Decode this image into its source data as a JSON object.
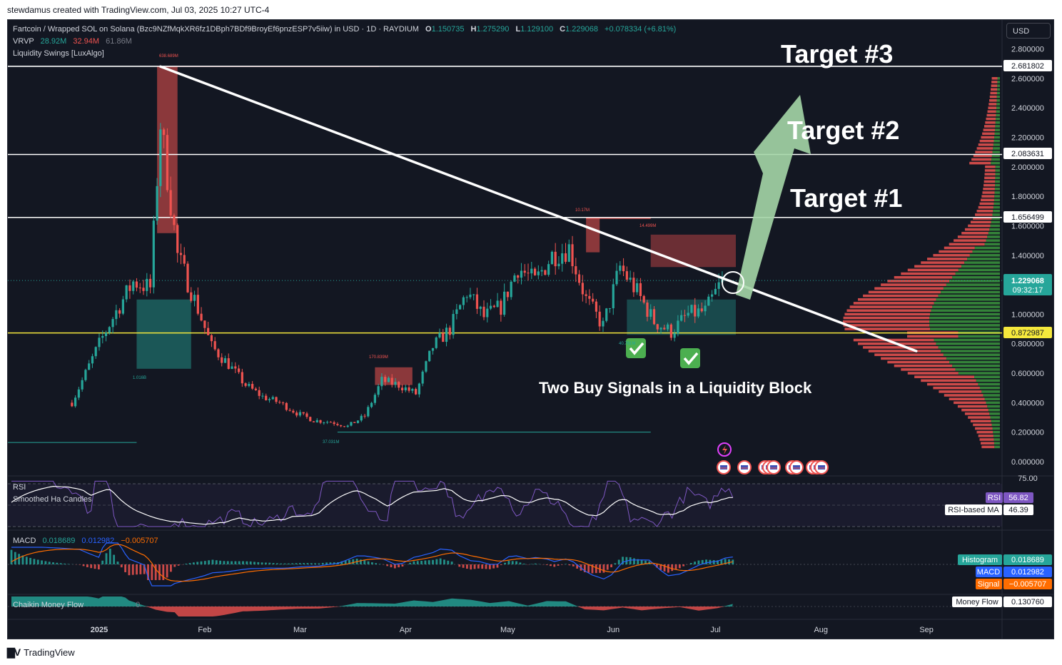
{
  "header": {
    "credit": "stewdamus created with TradingView.com, Jul 03, 2025 10:27 UTC-4"
  },
  "footer": {
    "brand": "TradingView"
  },
  "toolbar": {
    "currency": "USD"
  },
  "legend": {
    "symbol": "Fartcoin / Wrapped SOL on Solana (Bzc9NZfMqkXR6fz1DBph7BDf9BroyEf6pnzESP7v5iiw) in USD · 1D · RAYDIUM",
    "o_label": "O",
    "o": "1.150735",
    "h_label": "H",
    "h": "1.275290",
    "l_label": "L",
    "l": "1.129100",
    "c_label": "C",
    "c": "1.229068",
    "change": "+0.078334 (+6.81%)",
    "vrvp_label": "VRVP",
    "vrvp_up": "28.92M",
    "vrvp_down": "32.94M",
    "vrvp_total": "61.86M",
    "indicator": "Liquidity Swings [LuxAlgo]"
  },
  "annotations": {
    "target1": "Target #1",
    "target2": "Target #2",
    "target3": "Target #3",
    "caption": "Two Buy Signals in a Liquidity Block",
    "swing_labels": [
      "638.689M",
      "10.17M",
      "14.499M",
      "170.839M",
      "1.016B",
      "37.031M",
      "40.761M"
    ]
  },
  "price_axis": {
    "ticks": [
      "2.800000",
      "2.600000",
      "2.400000",
      "2.200000",
      "2.000000",
      "1.800000",
      "1.600000",
      "1.400000",
      "1.200000",
      "1.000000",
      "0.800000",
      "0.600000",
      "0.400000",
      "0.200000",
      "0.000000"
    ],
    "tags": {
      "t3": "2.681802",
      "t2": "2.083631",
      "t1": "1.656499",
      "last": "1.229068",
      "countdown": "09:32:17",
      "support": "0.872987"
    }
  },
  "time_axis": {
    "labels": [
      "2025",
      "Feb",
      "Mar",
      "Apr",
      "May",
      "Jun",
      "Jul",
      "Aug",
      "Sep"
    ]
  },
  "panes": {
    "rsi": {
      "title": "RSI",
      "sub": "Smoothed Ha Candles",
      "top_tick": "75.00",
      "rsi_label": "RSI",
      "rsi_value": "56.82",
      "ma_label": "RSI-based MA",
      "ma_value": "46.39"
    },
    "macd": {
      "title": "MACD",
      "v1": "0.018689",
      "v2": "0.012982",
      "v3": "−0.005707",
      "hist_label": "Histogram",
      "hist_value": "0.018689",
      "macd_label": "MACD",
      "macd_value": "0.012982",
      "signal_label": "Signal",
      "signal_value": "−0.005707"
    },
    "cmf": {
      "title": "Chaikin Money Flow",
      "zero": "0",
      "label": "Money Flow",
      "value": "0.130760"
    }
  },
  "colors": {
    "up": "#26a69a",
    "down": "#ef5350",
    "support": "#f5e83c",
    "arrow": "#a5d6a7",
    "bg": "#131722"
  },
  "chart_data": {
    "type": "candlestick",
    "title": "Fartcoin / Wrapped SOL on Solana · 1D",
    "x": [
      "2025-01-01",
      "2025-01-06",
      "2025-01-11",
      "2025-01-16",
      "2025-01-19",
      "2025-01-24",
      "2025-01-29",
      "2025-02-03",
      "2025-02-08",
      "2025-02-13",
      "2025-02-18",
      "2025-02-23",
      "2025-02-28",
      "2025-03-05",
      "2025-03-10",
      "2025-03-15",
      "2025-03-20",
      "2025-03-25",
      "2025-03-30",
      "2025-04-04",
      "2025-04-09",
      "2025-04-14",
      "2025-04-19",
      "2025-04-24",
      "2025-04-29",
      "2025-05-04",
      "2025-05-09",
      "2025-05-14",
      "2025-05-19",
      "2025-05-24",
      "2025-05-29",
      "2025-06-03",
      "2025-06-08",
      "2025-06-13",
      "2025-06-18",
      "2025-06-23",
      "2025-06-28",
      "2025-07-03"
    ],
    "close": [
      0.8,
      1.02,
      1.22,
      1.18,
      2.3,
      1.4,
      1.1,
      0.78,
      0.66,
      0.52,
      0.44,
      0.4,
      0.33,
      0.28,
      0.27,
      0.24,
      0.31,
      0.55,
      0.52,
      0.46,
      0.78,
      0.9,
      1.15,
      0.98,
      1.05,
      1.32,
      1.22,
      1.4,
      1.45,
      1.1,
      0.92,
      1.32,
      1.15,
      0.95,
      0.88,
      1.0,
      1.02,
      1.229068
    ],
    "ylim": [
      0.0,
      2.8
    ],
    "levels": {
      "target3": 2.681802,
      "target2": 2.083631,
      "target1": 1.656499,
      "support": 0.872987
    },
    "trendline": {
      "from": [
        "2025-01-19",
        2.68
      ],
      "to": [
        "2025-08-29",
        0.75
      ]
    }
  }
}
